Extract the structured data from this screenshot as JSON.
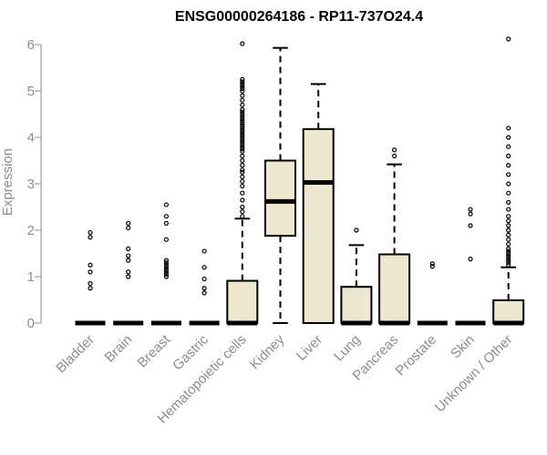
{
  "chart_data": {
    "type": "boxplot",
    "title": "ENSG00000264186 - RP11-737O24.4",
    "xlabel": "",
    "ylabel": "Expression",
    "ylim": [
      0,
      6.2
    ],
    "yticks": [
      0,
      1,
      2,
      3,
      4,
      5,
      6
    ],
    "grid": false,
    "box_fill": "#EEE8D0",
    "categories": [
      "Bladder",
      "Brain",
      "Breast",
      "Gastric",
      "Hematopoietic cells",
      "Kidney",
      "Liver",
      "Lung",
      "Pancreas",
      "Prostate",
      "Skin",
      "Unknown / Other"
    ],
    "boxes": [
      {
        "whislo": 0,
        "q1": 0,
        "med": 0,
        "q3": 0,
        "whishi": 0,
        "fliers": [
          0.75,
          0.85,
          1.1,
          1.25,
          1.85,
          1.95
        ]
      },
      {
        "whislo": 0,
        "q1": 0,
        "med": 0,
        "q3": 0,
        "whishi": 0,
        "fliers": [
          1.0,
          1.1,
          1.35,
          1.45,
          1.6,
          2.05,
          2.15
        ]
      },
      {
        "whislo": 0,
        "q1": 0,
        "med": 0,
        "q3": 0,
        "whishi": 0,
        "fliers": [
          1.0,
          1.05,
          1.1,
          1.15,
          1.2,
          1.25,
          1.3,
          1.35,
          1.8,
          2.15,
          2.3,
          2.55
        ]
      },
      {
        "whislo": 0,
        "q1": 0,
        "med": 0,
        "q3": 0,
        "whishi": 0,
        "fliers": [
          0.65,
          0.75,
          0.95,
          1.2,
          1.55
        ]
      },
      {
        "whislo": 0,
        "q1": 0,
        "med": 0,
        "q3": 0.91,
        "whishi": 2.25,
        "fliers": [
          2.3,
          2.4,
          2.5,
          2.65,
          2.8,
          2.95,
          3.05,
          3.15,
          3.25,
          3.3,
          3.4,
          3.5,
          3.6,
          3.7,
          3.75,
          3.8,
          3.85,
          3.9,
          3.95,
          4.0,
          4.05,
          4.1,
          4.15,
          4.2,
          4.25,
          4.3,
          4.35,
          4.4,
          4.45,
          4.5,
          4.55,
          4.6,
          4.7,
          4.8,
          4.9,
          5.0,
          5.05,
          5.1,
          5.15,
          5.2,
          5.25,
          6.02
        ]
      },
      {
        "whislo": 0,
        "q1": 1.88,
        "med": 2.62,
        "q3": 3.5,
        "whishi": 5.93,
        "fliers": []
      },
      {
        "whislo": 0,
        "q1": 0,
        "med": 3.03,
        "q3": 4.18,
        "whishi": 5.15,
        "fliers": []
      },
      {
        "whislo": 0,
        "q1": 0,
        "med": 0,
        "q3": 0.78,
        "whishi": 1.68,
        "fliers": [
          2.0
        ]
      },
      {
        "whislo": 0,
        "q1": 0,
        "med": 0,
        "q3": 1.48,
        "whishi": 3.42,
        "fliers": [
          3.6,
          3.73
        ]
      },
      {
        "whislo": 0,
        "q1": 0,
        "med": 0,
        "q3": 0,
        "whishi": 0,
        "fliers": [
          1.22,
          1.28
        ]
      },
      {
        "whislo": 0,
        "q1": 0,
        "med": 0,
        "q3": 0,
        "whishi": 0,
        "fliers": [
          1.38,
          2.1,
          2.35,
          2.45
        ]
      },
      {
        "whislo": 0,
        "q1": 0,
        "med": 0,
        "q3": 0.49,
        "whishi": 1.2,
        "fliers": [
          1.25,
          1.3,
          1.35,
          1.4,
          1.45,
          1.5,
          1.55,
          1.6,
          1.7,
          1.8,
          1.9,
          2.0,
          2.1,
          2.2,
          2.3,
          2.45,
          2.6,
          2.8,
          3.0,
          3.2,
          3.4,
          3.6,
          3.8,
          4.0,
          4.2,
          6.12
        ]
      }
    ]
  }
}
